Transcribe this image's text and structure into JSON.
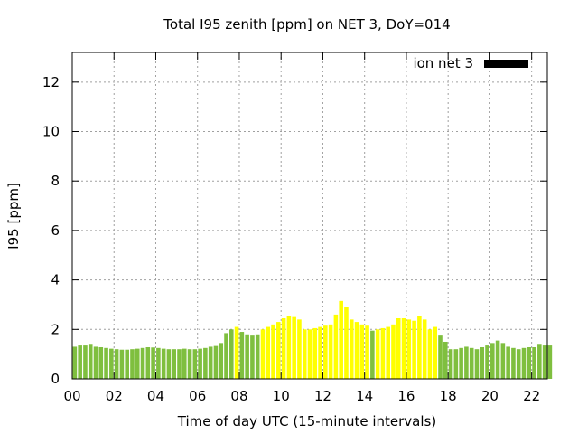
{
  "chart_data": {
    "type": "bar",
    "title": "Total I95 zenith [ppm] on NET 3, DoY=014",
    "xlabel": "Time of day UTC (15-minute intervals)",
    "ylabel": "I95 [ppm]",
    "xlim": [
      0,
      22.75
    ],
    "ylim": [
      0,
      13.2
    ],
    "x_ticks": [
      {
        "value": 0,
        "label": "00"
      },
      {
        "value": 2,
        "label": "02"
      },
      {
        "value": 4,
        "label": "04"
      },
      {
        "value": 6,
        "label": "06"
      },
      {
        "value": 8,
        "label": "08"
      },
      {
        "value": 10,
        "label": "10"
      },
      {
        "value": 12,
        "label": "12"
      },
      {
        "value": 14,
        "label": "14"
      },
      {
        "value": 16,
        "label": "16"
      },
      {
        "value": 18,
        "label": "18"
      },
      {
        "value": 20,
        "label": "20"
      },
      {
        "value": 22,
        "label": "22"
      }
    ],
    "y_ticks": [
      {
        "value": 0,
        "label": "0"
      },
      {
        "value": 2,
        "label": "2"
      },
      {
        "value": 4,
        "label": "4"
      },
      {
        "value": 6,
        "label": "6"
      },
      {
        "value": 8,
        "label": "8"
      },
      {
        "value": 10,
        "label": "10"
      },
      {
        "value": 12,
        "label": "12"
      }
    ],
    "grid": true,
    "legend": {
      "position": "top-right",
      "label": "ion net 3",
      "color": "#000000"
    },
    "colors": {
      "green": "#7fbf3f",
      "yellow": "#ffff00"
    },
    "bar_interval_hours": 0.25,
    "series": [
      {
        "name": "ion net 3",
        "values": [
          1.3,
          1.35,
          1.35,
          1.38,
          1.3,
          1.28,
          1.25,
          1.22,
          1.2,
          1.18,
          1.18,
          1.2,
          1.22,
          1.25,
          1.28,
          1.27,
          1.25,
          1.22,
          1.2,
          1.2,
          1.2,
          1.22,
          1.2,
          1.2,
          1.22,
          1.25,
          1.3,
          1.33,
          1.45,
          1.85,
          2.0,
          2.1,
          1.9,
          1.8,
          1.75,
          1.8,
          2.0,
          2.1,
          2.2,
          2.3,
          2.45,
          2.55,
          2.5,
          2.4,
          2.0,
          2.0,
          2.05,
          2.1,
          2.15,
          2.2,
          2.6,
          3.15,
          2.9,
          2.4,
          2.3,
          2.2,
          2.15,
          1.95,
          2.0,
          2.05,
          2.1,
          2.2,
          2.45,
          2.45,
          2.4,
          2.35,
          2.55,
          2.4,
          2.0,
          2.1,
          1.75,
          1.5,
          1.2,
          1.2,
          1.25,
          1.3,
          1.25,
          1.2,
          1.28,
          1.35,
          1.45,
          1.55,
          1.45,
          1.3,
          1.25,
          1.2,
          1.25,
          1.28,
          1.28,
          1.38,
          1.35,
          1.35
        ],
        "colors": [
          "g",
          "g",
          "g",
          "g",
          "g",
          "g",
          "g",
          "g",
          "g",
          "g",
          "g",
          "g",
          "g",
          "g",
          "g",
          "g",
          "g",
          "g",
          "g",
          "g",
          "g",
          "g",
          "g",
          "g",
          "g",
          "g",
          "g",
          "g",
          "g",
          "g",
          "g",
          "y",
          "g",
          "g",
          "g",
          "g",
          "y",
          "y",
          "y",
          "y",
          "y",
          "y",
          "y",
          "y",
          "y",
          "y",
          "y",
          "y",
          "y",
          "y",
          "y",
          "y",
          "y",
          "y",
          "y",
          "y",
          "y",
          "g",
          "y",
          "y",
          "y",
          "y",
          "y",
          "y",
          "y",
          "y",
          "y",
          "y",
          "y",
          "y",
          "g",
          "g",
          "g",
          "g",
          "g",
          "g",
          "g",
          "g",
          "g",
          "g",
          "g",
          "g",
          "g",
          "g",
          "g",
          "g",
          "g",
          "g",
          "g",
          "g",
          "g",
          "g"
        ]
      }
    ]
  }
}
